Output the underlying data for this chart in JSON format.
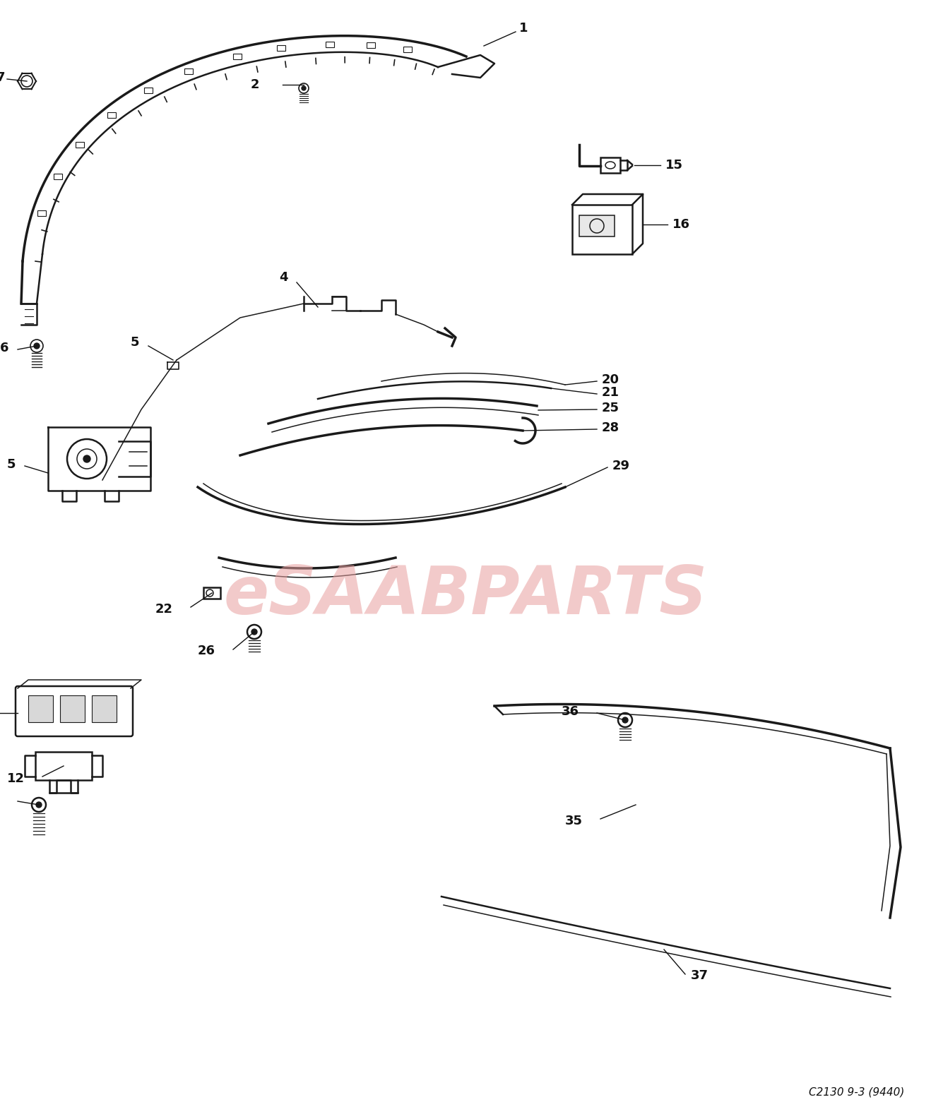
{
  "bg_color": "#ffffff",
  "watermark_text": "eSAABPARTS",
  "watermark_color": "#e8a0a0",
  "diagram_code": "C2130 9-3 (9440)",
  "lw_main": 1.8,
  "lw_thin": 1.1,
  "lw_thick": 2.5,
  "col": "#1a1a1a",
  "label_fs": 13,
  "label_col": "#111111"
}
